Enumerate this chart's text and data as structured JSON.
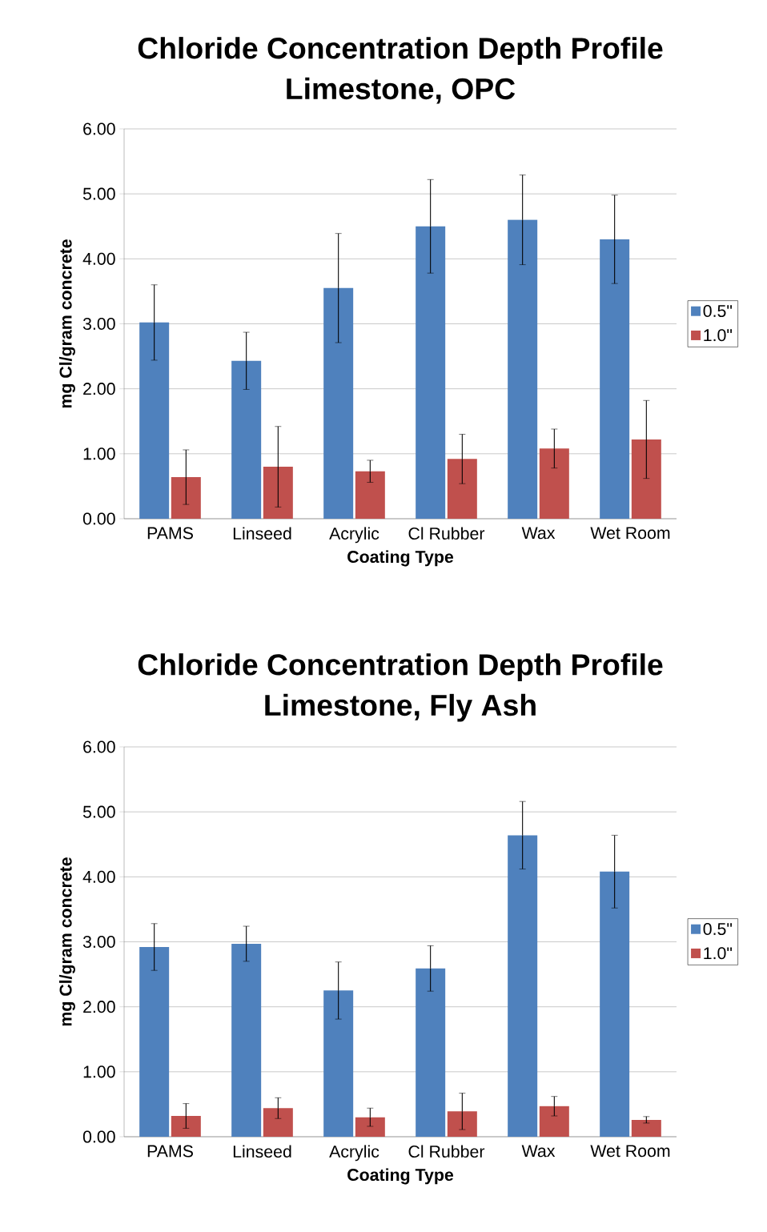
{
  "chart_data": [
    {
      "type": "bar",
      "title": "Chloride Concentration Depth Profile",
      "subtitle": "Limestone, OPC",
      "xlabel": "Coating Type",
      "ylabel": "mg Cl/gram concrete",
      "categories": [
        "PAMS",
        "Linseed",
        "Acrylic",
        "Cl Rubber",
        "Wax",
        "Wet Room"
      ],
      "series": [
        {
          "name": "0.5\"",
          "color": "#4f81bd",
          "values": [
            3.02,
            2.43,
            3.55,
            4.5,
            4.6,
            4.3
          ],
          "errors": [
            0.58,
            0.44,
            0.84,
            0.72,
            0.69,
            0.68
          ]
        },
        {
          "name": "1.0\"",
          "color": "#c0504d",
          "values": [
            0.64,
            0.8,
            0.73,
            0.92,
            1.08,
            1.22
          ],
          "errors": [
            0.42,
            0.62,
            0.17,
            0.38,
            0.3,
            0.6
          ]
        }
      ],
      "ylim": [
        0,
        6
      ],
      "yticks": [
        {
          "value": 0,
          "label": "0.00"
        },
        {
          "value": 1,
          "label": "1.00"
        },
        {
          "value": 2,
          "label": "2.00"
        },
        {
          "value": 3,
          "label": "3.00"
        },
        {
          "value": 4,
          "label": "4.00"
        },
        {
          "value": 5,
          "label": "5.00"
        },
        {
          "value": 6,
          "label": "6.00"
        }
      ],
      "grid": "y",
      "legend": "right"
    },
    {
      "type": "bar",
      "title": "Chloride Concentration Depth Profile",
      "subtitle": "Limestone, Fly Ash",
      "xlabel": "Coating Type",
      "ylabel": "mg Cl/gram concrete",
      "categories": [
        "PAMS",
        "Linseed",
        "Acrylic",
        "Cl Rubber",
        "Wax",
        "Wet Room"
      ],
      "series": [
        {
          "name": "0.5\"",
          "color": "#4f81bd",
          "values": [
            2.92,
            2.97,
            2.25,
            2.59,
            4.64,
            4.08
          ],
          "errors": [
            0.36,
            0.27,
            0.44,
            0.35,
            0.52,
            0.56
          ]
        },
        {
          "name": "1.0\"",
          "color": "#c0504d",
          "values": [
            0.32,
            0.44,
            0.3,
            0.39,
            0.47,
            0.26
          ],
          "errors": [
            0.19,
            0.16,
            0.14,
            0.28,
            0.15,
            0.05
          ]
        }
      ],
      "ylim": [
        0,
        6
      ],
      "yticks": [
        {
          "value": 0,
          "label": "0.00"
        },
        {
          "value": 1,
          "label": "1.00"
        },
        {
          "value": 2,
          "label": "2.00"
        },
        {
          "value": 3,
          "label": "3.00"
        },
        {
          "value": 4,
          "label": "4.00"
        },
        {
          "value": 5,
          "label": "5.00"
        },
        {
          "value": 6,
          "label": "6.00"
        }
      ],
      "grid": "y",
      "legend": "right"
    }
  ]
}
